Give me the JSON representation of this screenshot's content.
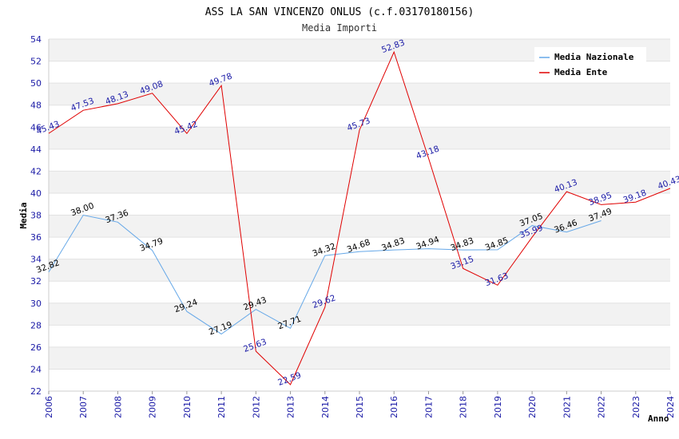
{
  "chart_data": {
    "type": "line",
    "title": "ASS LA SAN VINCENZO ONLUS (c.f.03170180156)",
    "subtitle": "Media Importi",
    "xlabel": "Anno",
    "ylabel": "Media",
    "ylim": [
      22,
      54
    ],
    "ytick_step": 2,
    "x": [
      "2006",
      "2007",
      "2008",
      "2009",
      "2010",
      "2011",
      "2012",
      "2013",
      "2014",
      "2015",
      "2016",
      "2017",
      "2018",
      "2019",
      "2020",
      "2021",
      "2022",
      "2023",
      "2024"
    ],
    "grid": true,
    "legend_position": "top-right",
    "series": [
      {
        "name": "Media Nazionale",
        "color": "#66a8e8",
        "label_color": "#000000",
        "values": [
          32.82,
          38.0,
          37.36,
          34.79,
          29.24,
          27.19,
          29.43,
          27.71,
          34.32,
          34.68,
          34.83,
          34.94,
          34.83,
          34.85,
          37.05,
          36.46,
          37.49,
          null,
          null
        ],
        "labels": [
          "32.82",
          "38.00",
          "37.36",
          "34.79",
          "29.24",
          "27.19",
          "29.43",
          "27.71",
          "34.32",
          "34.68",
          "34.83",
          "34.94",
          "34.83",
          "34.85",
          "37.05",
          "36.46",
          "37.49",
          "",
          ""
        ]
      },
      {
        "name": "Media Ente",
        "color": "#e00000",
        "label_color": "#1a1aa6",
        "values": [
          45.43,
          47.53,
          48.13,
          49.08,
          45.42,
          49.78,
          25.63,
          22.59,
          29.62,
          45.73,
          52.83,
          43.18,
          33.15,
          31.63,
          35.99,
          40.13,
          38.95,
          39.18,
          40.43
        ],
        "labels": [
          "45.43",
          "47.53",
          "48.13",
          "49.08",
          "45.42",
          "49.78",
          "25.63",
          "22.59",
          "29.62",
          "45.73",
          "52.83",
          "43.18",
          "33.15",
          "31.63",
          "35.99",
          "40.13",
          "38.95",
          "39.18",
          "40.43"
        ]
      }
    ]
  }
}
